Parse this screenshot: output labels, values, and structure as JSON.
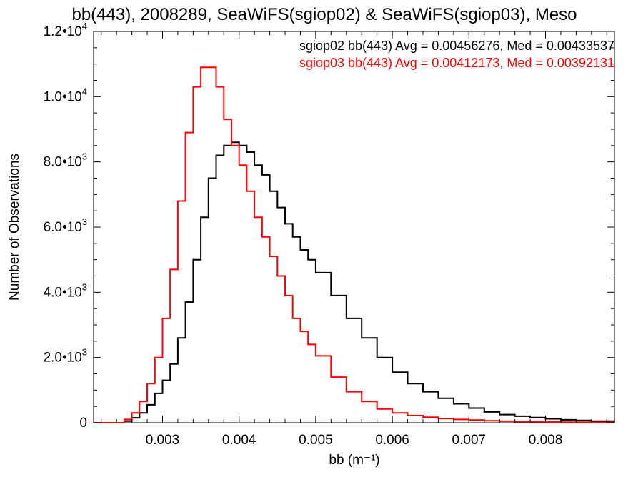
{
  "chart_data": {
    "type": "line",
    "title": "bb(443), 2008289, SeaWiFS(sgiop02) & SeaWiFS(sgiop03), Meso",
    "xlabel": "bb (m⁻¹)",
    "ylabel": "Number of Observations",
    "xlim": [
      0.0021,
      0.0089
    ],
    "ylim": [
      0,
      12000
    ],
    "x_ticks": [
      {
        "value": 0.003,
        "label": "0.003"
      },
      {
        "value": 0.004,
        "label": "0.004"
      },
      {
        "value": 0.005,
        "label": "0.005"
      },
      {
        "value": 0.006,
        "label": "0.006"
      },
      {
        "value": 0.007,
        "label": "0.007"
      },
      {
        "value": 0.008,
        "label": "0.008"
      }
    ],
    "y_ticks": [
      {
        "value": 0,
        "mantissa": "0",
        "exp": ""
      },
      {
        "value": 2000,
        "mantissa": "2.0•10",
        "exp": "3"
      },
      {
        "value": 4000,
        "mantissa": "4.0•10",
        "exp": "3"
      },
      {
        "value": 6000,
        "mantissa": "6.0•10",
        "exp": "3"
      },
      {
        "value": 8000,
        "mantissa": "8.0•10",
        "exp": "3"
      },
      {
        "value": 10000,
        "mantissa": "1.0•10",
        "exp": "4"
      },
      {
        "value": 12000,
        "mantissa": "1.2•10",
        "exp": "4"
      }
    ],
    "grid": false,
    "annotations": [
      {
        "text": "sgiop02 bb(443) Avg = 0.00456276, Med = 0.00433537",
        "color": "#000000"
      },
      {
        "text": "sgiop03 bb(443) Avg = 0.00412173, Med = 0.00392131",
        "color": "#ff0000"
      }
    ],
    "series": [
      {
        "color": "#000000",
        "x": [
          0.0021,
          0.00235,
          0.0025,
          0.0026,
          0.0027,
          0.0028,
          0.0029,
          0.003,
          0.0031,
          0.0032,
          0.0033,
          0.0034,
          0.0035,
          0.0036,
          0.0037,
          0.0038,
          0.0039,
          0.004,
          0.0041,
          0.0042,
          0.0043,
          0.0044,
          0.0045,
          0.0046,
          0.0047,
          0.0048,
          0.0049,
          0.005,
          0.0052,
          0.0054,
          0.0056,
          0.0058,
          0.006,
          0.0062,
          0.0064,
          0.0066,
          0.0068,
          0.007,
          0.0072,
          0.0074,
          0.0076,
          0.0078,
          0.008,
          0.0082,
          0.0084,
          0.0086,
          0.0089
        ],
        "y": [
          0,
          0,
          50,
          150,
          300,
          550,
          900,
          1300,
          1800,
          2600,
          3700,
          5000,
          6300,
          7500,
          8200,
          8500,
          8600,
          8500,
          8300,
          7900,
          7600,
          7100,
          6600,
          6100,
          5700,
          5300,
          5000,
          4600,
          3900,
          3200,
          2600,
          2000,
          1550,
          1200,
          950,
          750,
          580,
          450,
          330,
          250,
          200,
          160,
          120,
          90,
          70,
          50,
          40
        ]
      },
      {
        "color": "#ff0000",
        "x": [
          0.0021,
          0.00235,
          0.0025,
          0.0026,
          0.0027,
          0.0028,
          0.0029,
          0.003,
          0.0031,
          0.0032,
          0.0033,
          0.0034,
          0.0035,
          0.0036,
          0.0037,
          0.0038,
          0.0039,
          0.004,
          0.0041,
          0.0042,
          0.0043,
          0.0044,
          0.0045,
          0.0046,
          0.0047,
          0.0048,
          0.0049,
          0.005,
          0.0052,
          0.0054,
          0.0056,
          0.0058,
          0.006,
          0.0062,
          0.0064,
          0.0066,
          0.0068,
          0.007,
          0.0072,
          0.0074,
          0.0076,
          0.0078,
          0.008,
          0.0082,
          0.0084,
          0.0086,
          0.0089
        ],
        "y": [
          0,
          0,
          100,
          300,
          650,
          1200,
          2000,
          3200,
          4700,
          6800,
          8900,
          10300,
          10900,
          10900,
          10300,
          9300,
          8500,
          7900,
          7100,
          6300,
          5700,
          5100,
          4500,
          3900,
          3200,
          2800,
          2400,
          2050,
          1400,
          950,
          650,
          420,
          300,
          220,
          170,
          130,
          100,
          80,
          60,
          45,
          35,
          28,
          22,
          18,
          15,
          12,
          10
        ]
      }
    ]
  }
}
